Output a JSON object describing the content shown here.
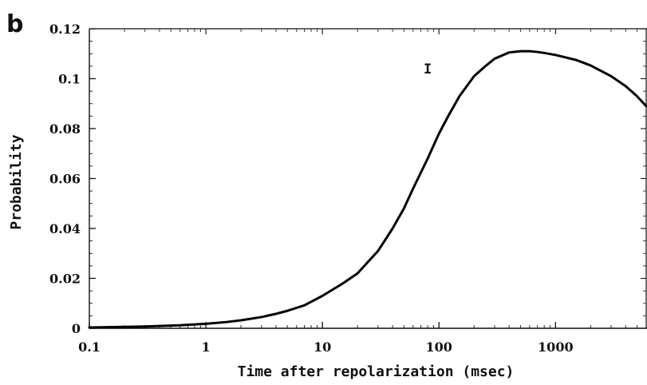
{
  "panel_label": "b",
  "colors": {
    "curve": "#000000",
    "axis": "#111111",
    "background": "#ffffff"
  },
  "chart_data": {
    "type": "line",
    "xlabel": "Time after repolarization (msec)",
    "ylabel": "Probability",
    "x_scale": "log",
    "xlim": [
      0.1,
      6000
    ],
    "ylim": [
      0,
      0.12
    ],
    "grid": false,
    "legend": "none",
    "x_ticks": [
      {
        "value": 0.1,
        "label": "0.1"
      },
      {
        "value": 1,
        "label": "1"
      },
      {
        "value": 10,
        "label": "10"
      },
      {
        "value": 100,
        "label": "100"
      },
      {
        "value": 1000,
        "label": "1000"
      }
    ],
    "y_ticks": [
      {
        "value": 0,
        "label": "0"
      },
      {
        "value": 0.02,
        "label": "0.02"
      },
      {
        "value": 0.04,
        "label": "0.04"
      },
      {
        "value": 0.06,
        "label": "0.06"
      },
      {
        "value": 0.08,
        "label": "0.08"
      },
      {
        "value": 0.1,
        "label": "0.1"
      },
      {
        "value": 0.12,
        "label": "0.12"
      }
    ],
    "annotations": [
      {
        "text": "I",
        "x": 80,
        "y": 0.104
      }
    ],
    "series": [
      {
        "x": [
          0.1,
          0.3,
          0.6,
          1,
          1.5,
          2,
          3,
          4,
          5,
          7,
          10,
          15,
          20,
          30,
          40,
          50,
          60,
          80,
          100,
          120,
          150,
          200,
          250,
          300,
          400,
          500,
          600,
          700,
          800,
          1000,
          1500,
          2000,
          3000,
          4000,
          5000,
          6000
        ],
        "y": [
          0.0003,
          0.0007,
          0.0012,
          0.0018,
          0.0025,
          0.0032,
          0.0045,
          0.0058,
          0.007,
          0.0092,
          0.013,
          0.018,
          0.022,
          0.031,
          0.04,
          0.048,
          0.056,
          0.068,
          0.078,
          0.085,
          0.093,
          0.101,
          0.105,
          0.108,
          0.1105,
          0.111,
          0.111,
          0.1107,
          0.1103,
          0.1095,
          0.1075,
          0.1053,
          0.101,
          0.097,
          0.093,
          0.089
        ]
      }
    ]
  }
}
